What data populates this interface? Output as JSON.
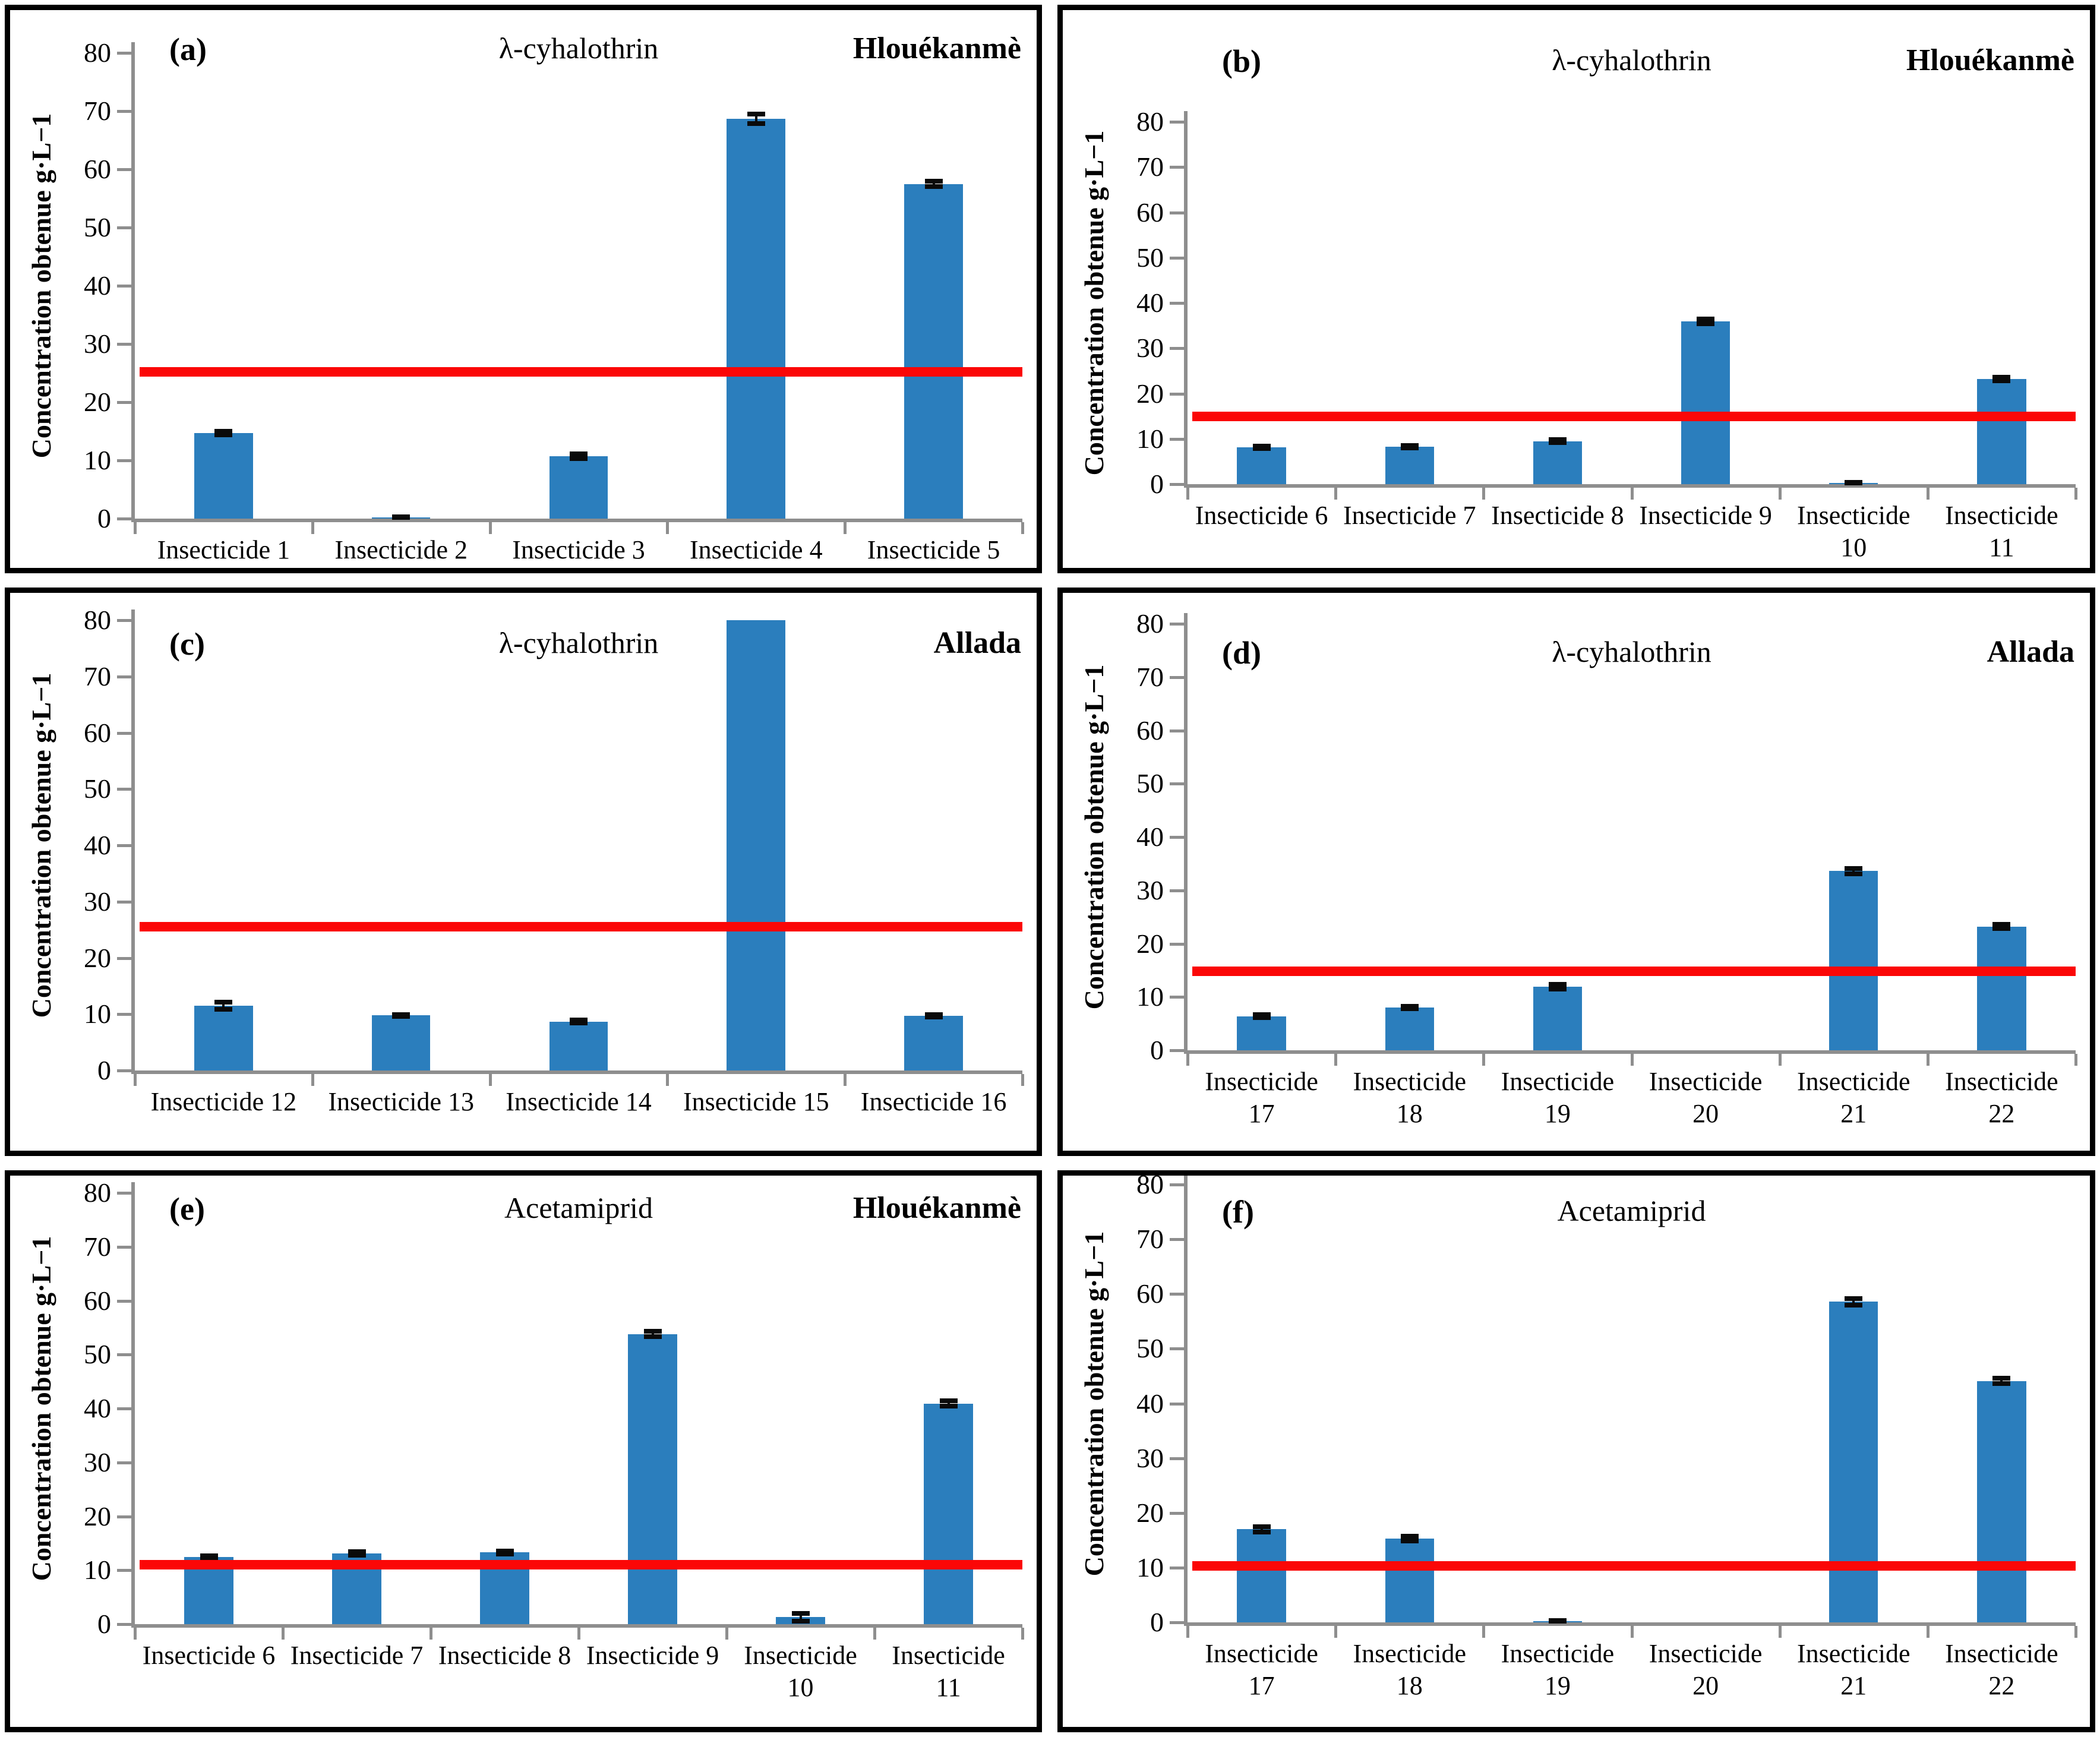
{
  "colors": {
    "bar": "#2b7ebd",
    "red_line": "#fb0707",
    "axis": "#8e8e8e",
    "error": "#0a0a0a",
    "text": "#000000",
    "panel_border": "#000000"
  },
  "chart_data": [
    {
      "type": "bar",
      "panel_label": "(a)",
      "title": "λ-cyhalothrin",
      "location": "Hlouékanmè",
      "ylabel": "Concentration obtenue g·L−1",
      "ylim": [
        0,
        80
      ],
      "ytick_step": 10,
      "grid": false,
      "red_line": 25.2,
      "categories": [
        [
          "Insecticide 1"
        ],
        [
          "Insecticide 2"
        ],
        [
          "Insecticide 3"
        ],
        [
          "Insecticide 4"
        ],
        [
          "Insecticide 5"
        ]
      ],
      "values": [
        14.7,
        0.2,
        10.7,
        68.7,
        57.5
      ],
      "errors": [
        0.3,
        0.1,
        0.4,
        0.8,
        0.5
      ]
    },
    {
      "type": "bar",
      "panel_label": "(b)",
      "title": "λ-cyhalothrin",
      "location": "Hlouékanmè",
      "ylabel": "Concentration obtenue g·L−1",
      "ylim": [
        0,
        80
      ],
      "ytick_step": 10,
      "grid": false,
      "red_line": 14.9,
      "categories": [
        [
          "Insecticide 6"
        ],
        [
          "Insecticide 7"
        ],
        [
          "Insecticide 8"
        ],
        [
          "Insecticide 9"
        ],
        [
          "Insecticide",
          "10"
        ],
        [
          "Insecticide",
          "11"
        ]
      ],
      "values": [
        8.1,
        8.3,
        9.5,
        35.9,
        0.3,
        23.2
      ],
      "errors": [
        0.25,
        0.25,
        0.3,
        0.5,
        0.1,
        0.35
      ]
    },
    {
      "type": "bar",
      "panel_label": "(c)",
      "title": "λ-cyhalothrin",
      "location": "Allada",
      "ylabel": "Concentration obtenue g·L−1",
      "ylim": [
        0,
        80
      ],
      "ytick_step": 10,
      "grid": false,
      "red_line": 25.5,
      "categories": [
        [
          "Insecticide 12"
        ],
        [
          "Insecticide 13"
        ],
        [
          "Insecticide 14"
        ],
        [
          "Insecticide 15"
        ],
        [
          "Insecticide 16"
        ]
      ],
      "values": [
        11.5,
        9.8,
        8.7,
        80,
        9.7
      ],
      "errors": [
        0.6,
        0.15,
        0.25,
        0,
        0.2
      ]
    },
    {
      "type": "bar",
      "panel_label": "(d)",
      "title": "λ-cyhalothrin",
      "location": "Allada",
      "ylabel": "Concentration obtenue g·L−1",
      "ylim": [
        0,
        80
      ],
      "ytick_step": 10,
      "grid": false,
      "red_line": 14.8,
      "categories": [
        [
          "Insecticide",
          "17"
        ],
        [
          "Insecticide",
          "18"
        ],
        [
          "Insecticide",
          "19"
        ],
        [
          "Insecticide",
          "20"
        ],
        [
          "Insecticide",
          "21"
        ],
        [
          "Insecticide",
          "22"
        ]
      ],
      "values": [
        6.4,
        8.0,
        11.9,
        0,
        33.6,
        23.2
      ],
      "errors": [
        0.25,
        0.2,
        0.45,
        0,
        0.5,
        0.4
      ]
    },
    {
      "type": "bar",
      "panel_label": "(e)",
      "title": "Acetamiprid",
      "location": "Hlouékanmè",
      "ylabel": "Concentration obtenue g·L−1",
      "ylim": [
        0,
        80
      ],
      "ytick_step": 10,
      "grid": false,
      "red_line": 11.0,
      "categories": [
        [
          "Insecticide 6"
        ],
        [
          "Insecticide 7"
        ],
        [
          "Insecticide 8"
        ],
        [
          "Insecticide 9"
        ],
        [
          "Insecticide",
          "10"
        ],
        [
          "Insecticide",
          "11"
        ]
      ],
      "values": [
        12.4,
        13.1,
        13.3,
        53.8,
        1.3,
        40.9
      ],
      "errors": [
        0.25,
        0.3,
        0.3,
        0.5,
        0.7,
        0.5
      ]
    },
    {
      "type": "bar",
      "panel_label": "(f)",
      "title": "Acetamiprid",
      "location": "",
      "ylabel": "Concentration obtenue g·L−1",
      "ylim": [
        0,
        80
      ],
      "ytick_step": 10,
      "grid": false,
      "red_line": 10.3,
      "categories": [
        [
          "Insecticide",
          "17"
        ],
        [
          "Insecticide",
          "18"
        ],
        [
          "Insecticide",
          "19"
        ],
        [
          "Insecticide",
          "20"
        ],
        [
          "Insecticide",
          "21"
        ],
        [
          "Insecticide",
          "22"
        ]
      ],
      "values": [
        17.0,
        15.3,
        0.2,
        0,
        58.6,
        44.1
      ],
      "errors": [
        0.5,
        0.4,
        0.1,
        0,
        0.6,
        0.5
      ]
    }
  ]
}
